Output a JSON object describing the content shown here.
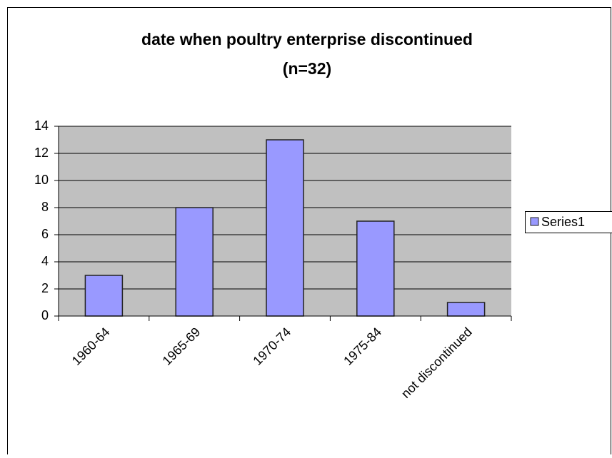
{
  "chart_data": {
    "type": "bar",
    "title": "date when poultry enterprise discontinued",
    "subtitle": "(n=32)",
    "categories": [
      "1960-64",
      "1965-69",
      "1970-74",
      "1975-84",
      "not discontinued"
    ],
    "series": [
      {
        "name": "Series1",
        "color": "#9999ff",
        "values": [
          3,
          8,
          13,
          7,
          1
        ]
      }
    ],
    "ylim": [
      0,
      14
    ],
    "yticks": [
      0,
      2,
      4,
      6,
      8,
      10,
      12,
      14
    ],
    "grid": true,
    "legend": "right"
  }
}
